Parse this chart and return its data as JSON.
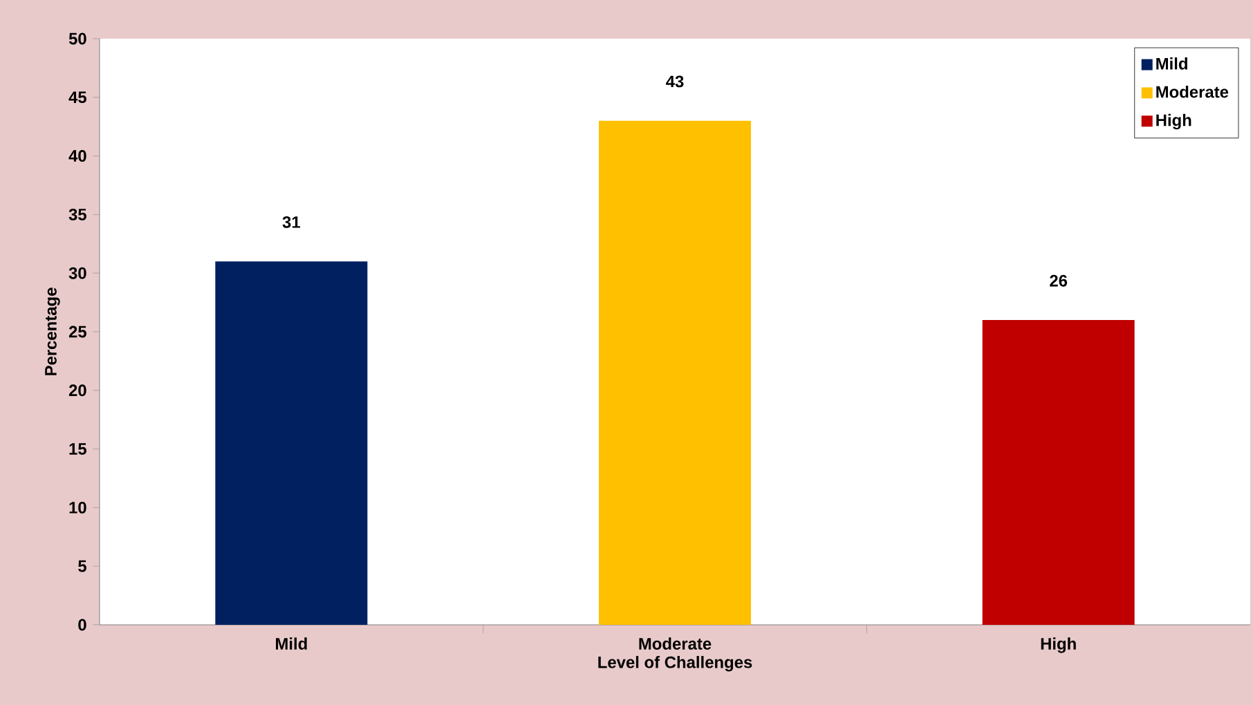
{
  "chart_data": {
    "type": "bar",
    "xlabel": "Level of Challenges",
    "ylabel": "Percentage",
    "categories": [
      "Mild",
      "Moderate",
      "High"
    ],
    "series": [
      {
        "name": "Mild",
        "color": "#002060",
        "values": [
          31,
          null,
          null
        ]
      },
      {
        "name": "Moderate",
        "color": "#ffc000",
        "values": [
          null,
          43,
          null
        ]
      },
      {
        "name": "High",
        "color": "#c00000",
        "values": [
          null,
          null,
          26
        ]
      }
    ],
    "ylim": [
      0,
      50
    ],
    "yticks": [
      0,
      5,
      10,
      15,
      20,
      25,
      30,
      35,
      40,
      45,
      50
    ],
    "data_labels": true,
    "legend": "top right",
    "grid": false
  }
}
